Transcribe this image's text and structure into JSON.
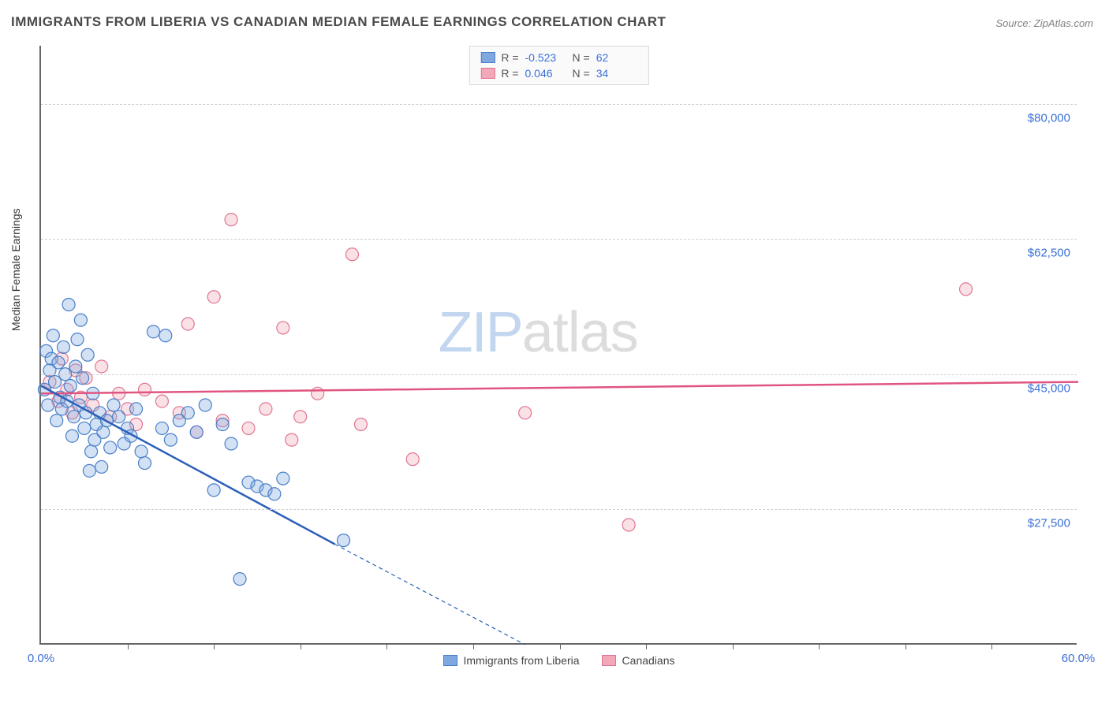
{
  "title": "IMMIGRANTS FROM LIBERIA VS CANADIAN MEDIAN FEMALE EARNINGS CORRELATION CHART",
  "source": "Source: ZipAtlas.com",
  "ylabel": "Median Female Earnings",
  "watermark": {
    "part1": "ZIP",
    "part2": "atlas"
  },
  "chart": {
    "type": "scatter",
    "background_color": "#ffffff",
    "grid_color": "#d0d0d0",
    "axis_color": "#666666",
    "xlim": [
      0,
      60
    ],
    "ylim": [
      10000,
      87500
    ],
    "x_tick_step": 5,
    "x_tick_labels": [
      {
        "value": 0,
        "label": "0.0%"
      },
      {
        "value": 60,
        "label": "60.0%"
      }
    ],
    "y_ticks": [
      {
        "value": 27500,
        "label": "$27,500"
      },
      {
        "value": 45000,
        "label": "$45,000"
      },
      {
        "value": 62500,
        "label": "$62,500"
      },
      {
        "value": 80000,
        "label": "$80,000"
      }
    ],
    "legend_top": [
      {
        "series": "liberia",
        "r_label": "R =",
        "r_value": "-0.523",
        "n_label": "N =",
        "n_value": "62"
      },
      {
        "series": "canadians",
        "r_label": "R =",
        "r_value": " 0.046",
        "n_label": "N =",
        "n_value": "34"
      }
    ],
    "legend_bottom": [
      {
        "series": "liberia",
        "label": "Immigrants from Liberia"
      },
      {
        "series": "canadians",
        "label": "Canadians"
      }
    ],
    "series": {
      "liberia": {
        "label": "Immigrants from Liberia",
        "marker_fill": "#7fa8e0",
        "marker_stroke": "#4a7fc8",
        "marker_radius": 8,
        "line_color": "#2b5fb8",
        "trend": {
          "x1": 0,
          "y1": 43500,
          "x2": 17,
          "y2": 23000,
          "ext_x2": 28,
          "ext_y2": 10000
        },
        "points": [
          [
            0.2,
            43000
          ],
          [
            0.3,
            48000
          ],
          [
            0.4,
            41000
          ],
          [
            0.5,
            45500
          ],
          [
            0.6,
            47000
          ],
          [
            0.7,
            50000
          ],
          [
            0.8,
            44000
          ],
          [
            0.9,
            39000
          ],
          [
            1.0,
            46500
          ],
          [
            1.1,
            42000
          ],
          [
            1.2,
            40500
          ],
          [
            1.3,
            48500
          ],
          [
            1.4,
            45000
          ],
          [
            1.5,
            41500
          ],
          [
            1.6,
            54000
          ],
          [
            1.7,
            43500
          ],
          [
            1.8,
            37000
          ],
          [
            1.9,
            39500
          ],
          [
            2.0,
            46000
          ],
          [
            2.1,
            49500
          ],
          [
            2.2,
            41000
          ],
          [
            2.3,
            52000
          ],
          [
            2.4,
            44500
          ],
          [
            2.5,
            38000
          ],
          [
            2.6,
            40000
          ],
          [
            2.7,
            47500
          ],
          [
            2.8,
            32500
          ],
          [
            2.9,
            35000
          ],
          [
            3.0,
            42500
          ],
          [
            3.1,
            36500
          ],
          [
            3.2,
            38500
          ],
          [
            3.4,
            40000
          ],
          [
            3.5,
            33000
          ],
          [
            3.6,
            37500
          ],
          [
            3.8,
            39000
          ],
          [
            4.0,
            35500
          ],
          [
            4.2,
            41000
          ],
          [
            4.5,
            39500
          ],
          [
            4.8,
            36000
          ],
          [
            5.0,
            38000
          ],
          [
            5.2,
            37000
          ],
          [
            5.5,
            40500
          ],
          [
            5.8,
            35000
          ],
          [
            6.0,
            33500
          ],
          [
            6.5,
            50500
          ],
          [
            7.0,
            38000
          ],
          [
            7.2,
            50000
          ],
          [
            7.5,
            36500
          ],
          [
            8.0,
            39000
          ],
          [
            8.5,
            40000
          ],
          [
            9.0,
            37500
          ],
          [
            9.5,
            41000
          ],
          [
            10.0,
            30000
          ],
          [
            10.5,
            38500
          ],
          [
            11.0,
            36000
          ],
          [
            11.5,
            18500
          ],
          [
            12.0,
            31000
          ],
          [
            12.5,
            30500
          ],
          [
            13.0,
            30000
          ],
          [
            13.5,
            29500
          ],
          [
            14.0,
            31500
          ],
          [
            17.5,
            23500
          ]
        ]
      },
      "canadians": {
        "label": "Canadians",
        "marker_fill": "#f2a8b8",
        "marker_stroke": "#e07590",
        "marker_radius": 8,
        "line_color": "#e05580",
        "trend": {
          "x1": 0,
          "y1": 42500,
          "x2": 60,
          "y2": 44000
        },
        "points": [
          [
            0.5,
            44000
          ],
          [
            1.0,
            41500
          ],
          [
            1.2,
            47000
          ],
          [
            1.5,
            43000
          ],
          [
            1.8,
            40000
          ],
          [
            2.0,
            45500
          ],
          [
            2.3,
            42000
          ],
          [
            2.6,
            44500
          ],
          [
            3.0,
            41000
          ],
          [
            3.5,
            46000
          ],
          [
            4.0,
            39500
          ],
          [
            4.5,
            42500
          ],
          [
            5.0,
            40500
          ],
          [
            5.5,
            38500
          ],
          [
            6.0,
            43000
          ],
          [
            7.0,
            41500
          ],
          [
            8.0,
            40000
          ],
          [
            8.5,
            51500
          ],
          [
            9.0,
            37500
          ],
          [
            10.0,
            55000
          ],
          [
            10.5,
            39000
          ],
          [
            11.0,
            65000
          ],
          [
            12.0,
            38000
          ],
          [
            13.0,
            40500
          ],
          [
            14.0,
            51000
          ],
          [
            14.5,
            36500
          ],
          [
            15.0,
            39500
          ],
          [
            16.0,
            42500
          ],
          [
            18.0,
            60500
          ],
          [
            18.5,
            38500
          ],
          [
            21.5,
            34000
          ],
          [
            28.0,
            40000
          ],
          [
            34.0,
            25500
          ],
          [
            53.5,
            56000
          ]
        ]
      }
    }
  }
}
